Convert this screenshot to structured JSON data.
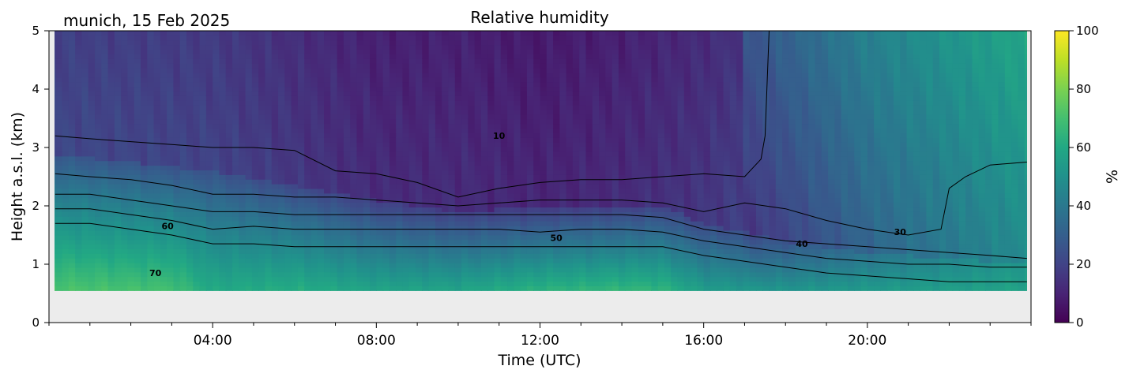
{
  "header": {
    "location_date": "munich, 15 Feb 2025"
  },
  "chart_data": {
    "type": "heatmap",
    "title": "Relative humidity",
    "xlabel": "Time (UTC)",
    "ylabel": "Height a.s.l. (km)",
    "x_range_hours": [
      0,
      24
    ],
    "ylim": [
      0,
      5
    ],
    "data_bottom_km": 0.55,
    "xticks": [
      {
        "h": 4,
        "label": "04:00"
      },
      {
        "h": 8,
        "label": "08:00"
      },
      {
        "h": 12,
        "label": "12:00"
      },
      {
        "h": 16,
        "label": "16:00"
      },
      {
        "h": 20,
        "label": "20:00"
      }
    ],
    "yticks": [
      0,
      1,
      2,
      3,
      4,
      5
    ],
    "colormap": "viridis",
    "colorbar": {
      "label": "%",
      "min": 0,
      "max": 100,
      "ticks": [
        0,
        20,
        40,
        60,
        80,
        100
      ]
    },
    "contour_levels": [
      10,
      20,
      30,
      40,
      50,
      60,
      70
    ],
    "contour_labels": [
      {
        "label": "10",
        "h": 11.0,
        "km": 3.15
      },
      {
        "label": "30",
        "h": 20.8,
        "km": 1.5
      },
      {
        "label": "40",
        "h": 18.4,
        "km": 1.3
      },
      {
        "label": "50",
        "h": 12.4,
        "km": 1.4
      },
      {
        "label": "60",
        "h": 2.9,
        "km": 1.6
      },
      {
        "label": "70",
        "h": 2.6,
        "km": 0.8
      }
    ],
    "contour_isolines": [
      {
        "level": 20,
        "points": [
          [
            0.15,
            3.2
          ],
          [
            1,
            3.15
          ],
          [
            2,
            3.1
          ],
          [
            3,
            3.05
          ],
          [
            4,
            3.0
          ],
          [
            5,
            3.0
          ],
          [
            6,
            2.95
          ],
          [
            7,
            2.6
          ],
          [
            8,
            2.55
          ],
          [
            9,
            2.4
          ],
          [
            10,
            2.15
          ],
          [
            11,
            2.3
          ],
          [
            12,
            2.4
          ],
          [
            13,
            2.45
          ],
          [
            14,
            2.45
          ],
          [
            15,
            2.5
          ],
          [
            16,
            2.55
          ],
          [
            17,
            2.5
          ],
          [
            17.4,
            2.8
          ],
          [
            17.5,
            3.2
          ],
          [
            17.6,
            5
          ]
        ]
      },
      {
        "level": 30,
        "points": [
          [
            0.15,
            2.55
          ],
          [
            1,
            2.5
          ],
          [
            2,
            2.45
          ],
          [
            3,
            2.35
          ],
          [
            4,
            2.2
          ],
          [
            5,
            2.2
          ],
          [
            6,
            2.15
          ],
          [
            7,
            2.15
          ],
          [
            8,
            2.1
          ],
          [
            9,
            2.05
          ],
          [
            10,
            2.0
          ],
          [
            11,
            2.05
          ],
          [
            12,
            2.1
          ],
          [
            13,
            2.1
          ],
          [
            14,
            2.1
          ],
          [
            15,
            2.05
          ],
          [
            16,
            1.9
          ],
          [
            17,
            2.05
          ],
          [
            18,
            1.95
          ],
          [
            19,
            1.75
          ],
          [
            20,
            1.6
          ],
          [
            21,
            1.5
          ],
          [
            21.8,
            1.6
          ],
          [
            22,
            2.3
          ],
          [
            22.4,
            2.5
          ],
          [
            23,
            2.7
          ],
          [
            23.9,
            2.75
          ]
        ]
      },
      {
        "level": 40,
        "points": [
          [
            0.15,
            2.2
          ],
          [
            1,
            2.2
          ],
          [
            2,
            2.1
          ],
          [
            3,
            2.0
          ],
          [
            4,
            1.9
          ],
          [
            5,
            1.9
          ],
          [
            6,
            1.85
          ],
          [
            7,
            1.85
          ],
          [
            8,
            1.85
          ],
          [
            9,
            1.85
          ],
          [
            10,
            1.85
          ],
          [
            11,
            1.85
          ],
          [
            12,
            1.85
          ],
          [
            13,
            1.85
          ],
          [
            14,
            1.85
          ],
          [
            15,
            1.8
          ],
          [
            16,
            1.6
          ],
          [
            17,
            1.5
          ],
          [
            18,
            1.4
          ],
          [
            19,
            1.35
          ],
          [
            20,
            1.3
          ],
          [
            21,
            1.25
          ],
          [
            22,
            1.2
          ],
          [
            23,
            1.15
          ],
          [
            23.9,
            1.1
          ]
        ]
      },
      {
        "level": 50,
        "points": [
          [
            0.15,
            1.95
          ],
          [
            1,
            1.95
          ],
          [
            2,
            1.85
          ],
          [
            3,
            1.75
          ],
          [
            4,
            1.6
          ],
          [
            5,
            1.65
          ],
          [
            6,
            1.6
          ],
          [
            7,
            1.6
          ],
          [
            8,
            1.6
          ],
          [
            9,
            1.6
          ],
          [
            10,
            1.6
          ],
          [
            11,
            1.6
          ],
          [
            12,
            1.55
          ],
          [
            13,
            1.6
          ],
          [
            14,
            1.6
          ],
          [
            15,
            1.55
          ],
          [
            16,
            1.4
          ],
          [
            17,
            1.3
          ],
          [
            18,
            1.2
          ],
          [
            19,
            1.1
          ],
          [
            20,
            1.05
          ],
          [
            21,
            1.0
          ],
          [
            22,
            1.0
          ],
          [
            23,
            0.95
          ],
          [
            23.9,
            0.95
          ]
        ]
      },
      {
        "level": 60,
        "points": [
          [
            0.15,
            1.7
          ],
          [
            1,
            1.7
          ],
          [
            2,
            1.6
          ],
          [
            3,
            1.5
          ],
          [
            4,
            1.35
          ],
          [
            5,
            1.35
          ],
          [
            6,
            1.3
          ],
          [
            7,
            1.3
          ],
          [
            8,
            1.3
          ],
          [
            9,
            1.3
          ],
          [
            10,
            1.3
          ],
          [
            11,
            1.3
          ],
          [
            12,
            1.3
          ],
          [
            13,
            1.3
          ],
          [
            14,
            1.3
          ],
          [
            15,
            1.3
          ],
          [
            16,
            1.15
          ],
          [
            17,
            1.05
          ],
          [
            18,
            0.95
          ],
          [
            19,
            0.85
          ],
          [
            20,
            0.8
          ],
          [
            21,
            0.75
          ],
          [
            22,
            0.7
          ],
          [
            23,
            0.7
          ],
          [
            23.9,
            0.7
          ]
        ]
      }
    ]
  }
}
